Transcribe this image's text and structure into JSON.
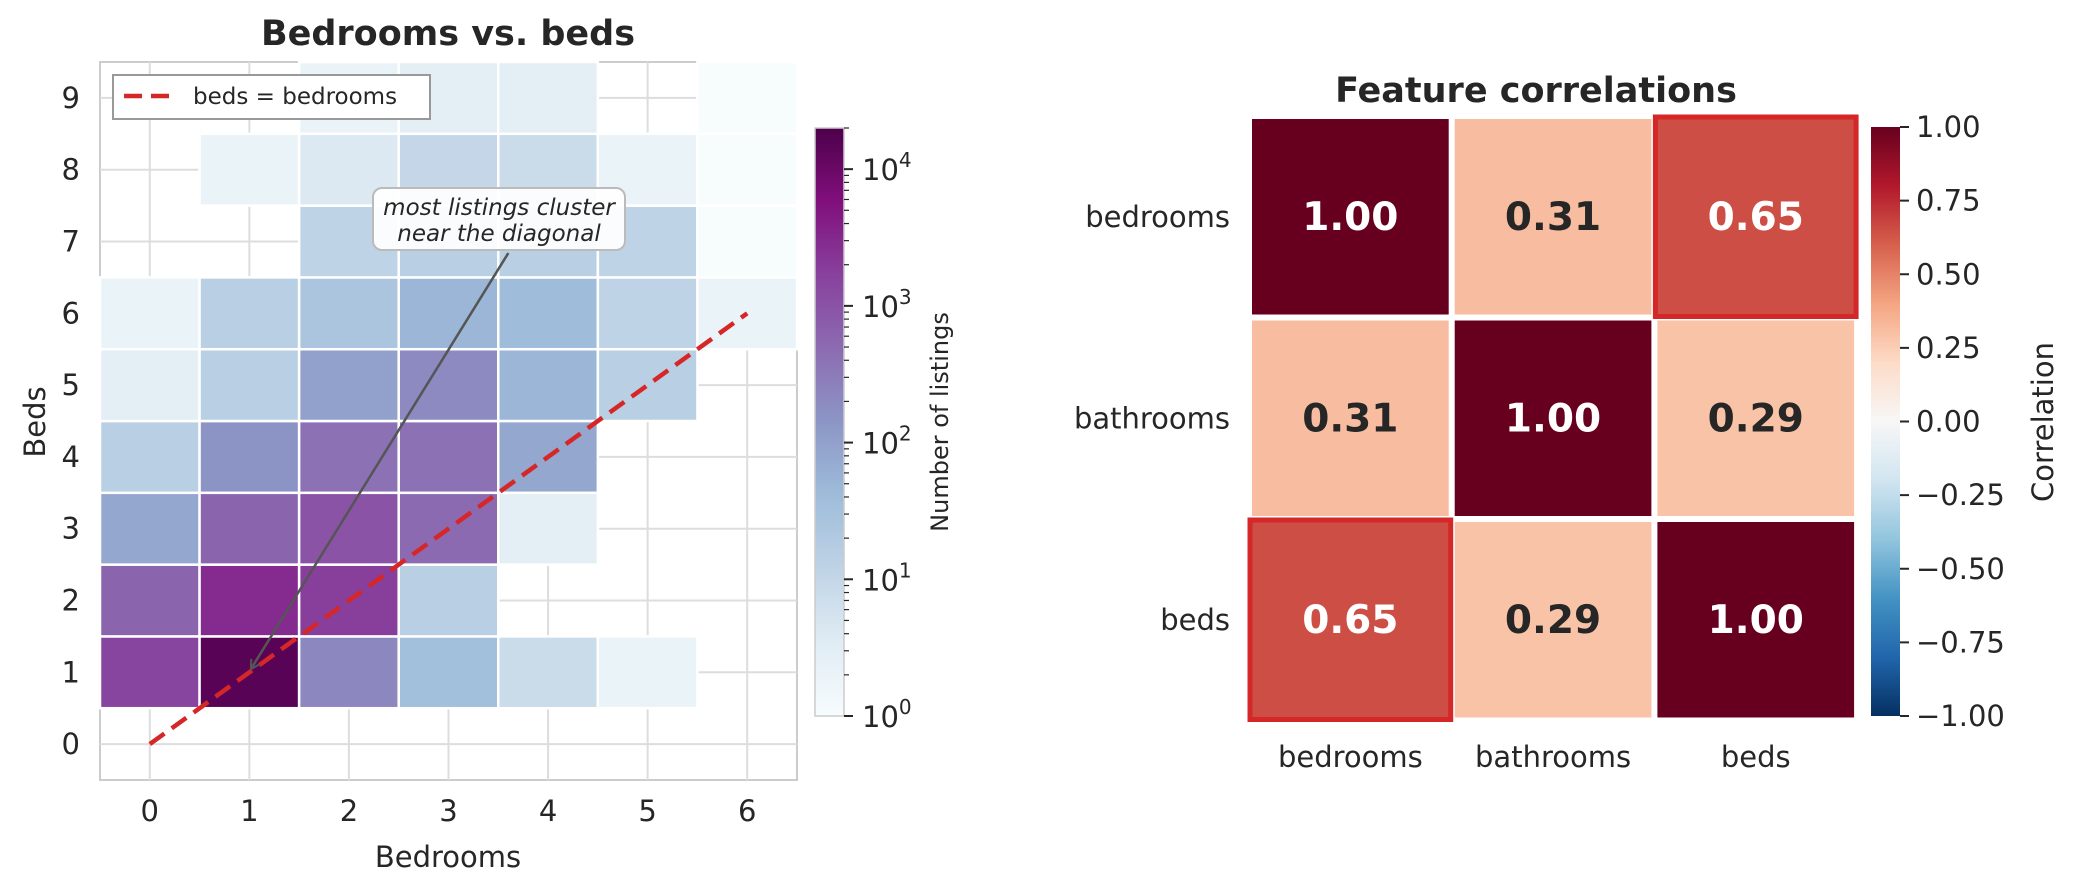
{
  "chart_data": [
    {
      "type": "heatmap",
      "title": "Bedrooms vs. beds",
      "xlabel": "Bedrooms",
      "ylabel": "Beds",
      "x_ticks": [
        "0",
        "1",
        "2",
        "3",
        "4",
        "5",
        "6"
      ],
      "y_ticks": [
        "0",
        "1",
        "2",
        "3",
        "4",
        "5",
        "6",
        "7",
        "8",
        "9"
      ],
      "xlim": [
        -0.5,
        6.5
      ],
      "ylim": [
        -0.5,
        9.5
      ],
      "grid": true,
      "legend": {
        "placement": "upper-left",
        "entries": [
          {
            "label": "beds = bedrooms",
            "color": "#d62728",
            "style": "dashed"
          }
        ]
      },
      "reference_line": {
        "from": [
          0,
          0
        ],
        "to": [
          6,
          6
        ]
      },
      "colorbar": {
        "label": "Number of listings",
        "scale": "log",
        "colormap": "BuPu",
        "range": [
          1,
          20000
        ],
        "tick_values": [
          1,
          10,
          100,
          1000,
          10000
        ],
        "tick_labels": [
          {
            "base": "10",
            "exp": "0"
          },
          {
            "base": "10",
            "exp": "1"
          },
          {
            "base": "10",
            "exp": "2"
          },
          {
            "base": "10",
            "exp": "3"
          },
          {
            "base": "10",
            "exp": "4"
          }
        ]
      },
      "annotation": {
        "lines": [
          "most listings cluster",
          "near the diagonal"
        ],
        "text_at": [
          3.35,
          7.3
        ],
        "arrow_to": [
          1.0,
          1.0
        ]
      },
      "cells": [
        {
          "x": 0,
          "y": 1,
          "v": 1500
        },
        {
          "x": 1,
          "y": 1,
          "v": 15000
        },
        {
          "x": 2,
          "y": 1,
          "v": 220
        },
        {
          "x": 3,
          "y": 1,
          "v": 35
        },
        {
          "x": 4,
          "y": 1,
          "v": 8
        },
        {
          "x": 5,
          "y": 1,
          "v": 2
        },
        {
          "x": 0,
          "y": 2,
          "v": 600
        },
        {
          "x": 1,
          "y": 2,
          "v": 3000
        },
        {
          "x": 2,
          "y": 2,
          "v": 1800
        },
        {
          "x": 3,
          "y": 2,
          "v": 15
        },
        {
          "x": 0,
          "y": 3,
          "v": 80
        },
        {
          "x": 1,
          "y": 3,
          "v": 600
        },
        {
          "x": 2,
          "y": 3,
          "v": 1000
        },
        {
          "x": 3,
          "y": 3,
          "v": 500
        },
        {
          "x": 4,
          "y": 3,
          "v": 3
        },
        {
          "x": 0,
          "y": 4,
          "v": 15
        },
        {
          "x": 1,
          "y": 4,
          "v": 150
        },
        {
          "x": 2,
          "y": 4,
          "v": 400
        },
        {
          "x": 3,
          "y": 4,
          "v": 400
        },
        {
          "x": 4,
          "y": 4,
          "v": 80
        },
        {
          "x": 0,
          "y": 5,
          "v": 3
        },
        {
          "x": 1,
          "y": 5,
          "v": 15
        },
        {
          "x": 2,
          "y": 5,
          "v": 100
        },
        {
          "x": 3,
          "y": 5,
          "v": 200
        },
        {
          "x": 4,
          "y": 5,
          "v": 50
        },
        {
          "x": 5,
          "y": 5,
          "v": 15
        },
        {
          "x": 0,
          "y": 6,
          "v": 2
        },
        {
          "x": 1,
          "y": 6,
          "v": 15
        },
        {
          "x": 2,
          "y": 6,
          "v": 25
        },
        {
          "x": 3,
          "y": 6,
          "v": 50
        },
        {
          "x": 4,
          "y": 6,
          "v": 40
        },
        {
          "x": 5,
          "y": 6,
          "v": 12
        },
        {
          "x": 6,
          "y": 6,
          "v": 2
        },
        {
          "x": 2,
          "y": 7,
          "v": 12
        },
        {
          "x": 3,
          "y": 7,
          "v": 15
        },
        {
          "x": 4,
          "y": 7,
          "v": 15
        },
        {
          "x": 5,
          "y": 7,
          "v": 12
        },
        {
          "x": 6,
          "y": 7,
          "v": 1
        },
        {
          "x": 1,
          "y": 8,
          "v": 2
        },
        {
          "x": 2,
          "y": 8,
          "v": 4
        },
        {
          "x": 3,
          "y": 8,
          "v": 10
        },
        {
          "x": 4,
          "y": 8,
          "v": 8
        },
        {
          "x": 5,
          "y": 8,
          "v": 2
        },
        {
          "x": 6,
          "y": 8,
          "v": 1
        },
        {
          "x": 2,
          "y": 9,
          "v": 2
        },
        {
          "x": 3,
          "y": 9,
          "v": 3
        },
        {
          "x": 4,
          "y": 9,
          "v": 3
        },
        {
          "x": 6,
          "y": 9,
          "v": 1
        }
      ]
    },
    {
      "type": "heatmap",
      "title": "Feature correlations",
      "x_labels": [
        "bedrooms",
        "bathrooms",
        "beds"
      ],
      "y_labels": [
        "bedrooms",
        "bathrooms",
        "beds"
      ],
      "values": [
        [
          1.0,
          0.31,
          0.65
        ],
        [
          0.31,
          1.0,
          0.29
        ],
        [
          0.65,
          0.29,
          1.0
        ]
      ],
      "value_labels": [
        [
          "1.00",
          "0.31",
          "0.65"
        ],
        [
          "0.31",
          "1.00",
          "0.29"
        ],
        [
          "0.65",
          "0.29",
          "1.00"
        ]
      ],
      "highlighted_cells": [
        [
          0,
          2
        ],
        [
          2,
          0
        ]
      ],
      "highlight_color": "#d62728",
      "colorbar": {
        "label": "Correlation",
        "colormap": "RdBu_r",
        "range": [
          -1,
          1
        ],
        "tick_values": [
          1.0,
          0.75,
          0.5,
          0.25,
          0.0,
          -0.25,
          -0.5,
          -0.75,
          -1.0
        ],
        "tick_labels": [
          "1.00",
          "0.75",
          "0.50",
          "0.25",
          "0.00",
          "−0.25",
          "−0.50",
          "−0.75",
          "−1.00"
        ]
      }
    }
  ]
}
